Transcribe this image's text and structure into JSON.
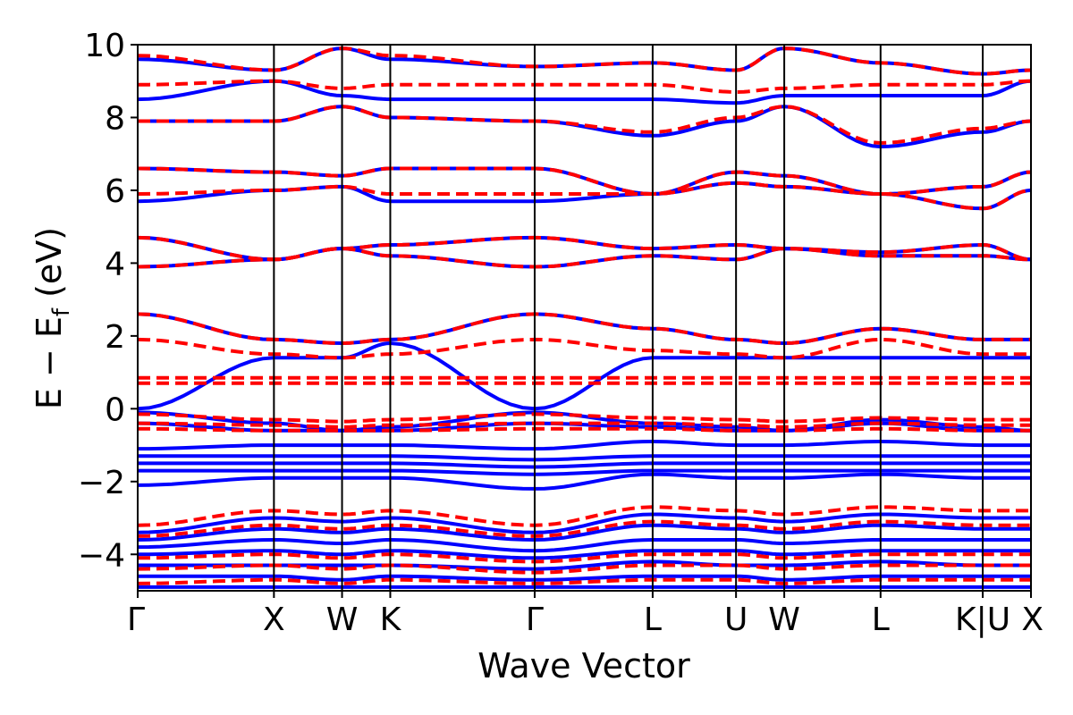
{
  "chart_data": {
    "type": "line",
    "title": "",
    "xlabel": "Wave Vector",
    "ylabel": "E − E",
    "ylabel_subscript": "f",
    "ylabel_unit": " (eV)",
    "ylim": [
      -5,
      10
    ],
    "yticks": [
      {
        "value": 10,
        "label": "10"
      },
      {
        "value": 8,
        "label": "8"
      },
      {
        "value": 6,
        "label": "6"
      },
      {
        "value": 4,
        "label": "4"
      },
      {
        "value": 2,
        "label": "2"
      },
      {
        "value": 0,
        "label": "0"
      },
      {
        "value": -2,
        "label": "−2"
      },
      {
        "value": -4,
        "label": "−4"
      }
    ],
    "k_points": [
      {
        "label": "Γ",
        "x": 0.0
      },
      {
        "label": "X",
        "x": 1.0
      },
      {
        "label": "W",
        "x": 1.5
      },
      {
        "label": "K",
        "x": 1.854
      },
      {
        "label": "Γ",
        "x": 2.914
      },
      {
        "label": "L",
        "x": 3.78
      },
      {
        "label": "U",
        "x": 4.392
      },
      {
        "label": "W",
        "x": 4.746
      },
      {
        "label": "L",
        "x": 5.453
      },
      {
        "label": "K|U",
        "x": 6.203
      },
      {
        "label": "X",
        "x": 6.557
      }
    ],
    "xlim": [
      0,
      6.557
    ],
    "grid": false,
    "series_styles": [
      {
        "color": "#0000ff",
        "dash": "solid"
      },
      {
        "color": "#ff0000",
        "dash": "dashed"
      }
    ],
    "series": [
      {
        "style": 0,
        "bands": [
          [
            0.0,
            1.4,
            1.4,
            1.8,
            0.0,
            1.4,
            1.4,
            1.4,
            1.4,
            1.4,
            1.4
          ],
          [
            2.6,
            1.9,
            1.8,
            1.9,
            2.6,
            2.2,
            1.9,
            1.8,
            2.2,
            1.9,
            1.9
          ],
          [
            -0.1,
            -0.4,
            -0.6,
            -0.5,
            -0.1,
            -0.4,
            -0.5,
            -0.6,
            -0.3,
            -0.5,
            -0.6
          ],
          [
            -0.4,
            -0.6,
            -0.6,
            -0.6,
            -0.4,
            -0.5,
            -0.6,
            -0.6,
            -0.4,
            -0.6,
            -0.6
          ],
          [
            -1.1,
            -1.0,
            -1.0,
            -1.0,
            -1.1,
            -0.9,
            -1.0,
            -1.0,
            -0.9,
            -1.0,
            -1.0
          ],
          [
            -1.3,
            -1.3,
            -1.3,
            -1.3,
            -1.4,
            -1.3,
            -1.3,
            -1.3,
            -1.3,
            -1.3,
            -1.3
          ],
          [
            -1.5,
            -1.5,
            -1.5,
            -1.5,
            -1.6,
            -1.5,
            -1.5,
            -1.5,
            -1.5,
            -1.5,
            -1.5
          ],
          [
            -1.7,
            -1.7,
            -1.7,
            -1.7,
            -1.8,
            -1.7,
            -1.7,
            -1.7,
            -1.7,
            -1.7,
            -1.7
          ],
          [
            -2.1,
            -1.9,
            -1.9,
            -1.9,
            -2.2,
            -1.8,
            -1.9,
            -1.9,
            -1.8,
            -1.9,
            -1.9
          ],
          [
            -3.4,
            -3.0,
            -3.1,
            -3.0,
            -3.4,
            -2.9,
            -3.0,
            -3.1,
            -2.9,
            -3.0,
            -3.0
          ],
          [
            -3.6,
            -3.3,
            -3.4,
            -3.3,
            -3.6,
            -3.2,
            -3.3,
            -3.4,
            -3.2,
            -3.3,
            -3.3
          ],
          [
            -3.8,
            -3.6,
            -3.7,
            -3.6,
            -3.9,
            -3.6,
            -3.6,
            -3.7,
            -3.6,
            -3.6,
            -3.6
          ],
          [
            -4.0,
            -3.9,
            -4.0,
            -3.9,
            -4.1,
            -3.9,
            -3.9,
            -4.0,
            -3.9,
            -3.9,
            -3.9
          ],
          [
            -4.3,
            -4.3,
            -4.3,
            -4.3,
            -4.4,
            -4.2,
            -4.3,
            -4.3,
            -4.2,
            -4.3,
            -4.3
          ],
          [
            -4.6,
            -4.6,
            -4.7,
            -4.6,
            -4.7,
            -4.6,
            -4.6,
            -4.7,
            -4.6,
            -4.6,
            -4.6
          ],
          [
            -4.9,
            -4.9,
            -4.9,
            -4.9,
            -4.9,
            -4.9,
            -4.9,
            -4.9,
            -4.9,
            -4.9,
            -4.9
          ],
          [
            3.9,
            4.1,
            4.4,
            4.2,
            3.9,
            4.2,
            4.1,
            4.4,
            4.2,
            4.2,
            4.1
          ],
          [
            4.7,
            4.1,
            4.4,
            4.5,
            4.7,
            4.4,
            4.5,
            4.4,
            4.3,
            4.5,
            4.1
          ],
          [
            5.7,
            6.0,
            6.1,
            5.7,
            5.7,
            5.9,
            6.2,
            6.1,
            5.9,
            5.5,
            6.0
          ],
          [
            6.6,
            6.5,
            6.4,
            6.6,
            6.6,
            5.9,
            6.5,
            6.4,
            5.9,
            6.1,
            6.5
          ],
          [
            7.9,
            7.9,
            8.3,
            8.0,
            7.9,
            7.5,
            7.9,
            8.3,
            7.2,
            7.6,
            7.9
          ],
          [
            8.5,
            9.0,
            8.6,
            8.5,
            8.5,
            8.5,
            8.4,
            8.6,
            8.6,
            8.6,
            9.0
          ],
          [
            9.6,
            9.3,
            9.9,
            9.6,
            9.4,
            9.5,
            9.3,
            9.9,
            9.5,
            9.2,
            9.3
          ]
        ]
      },
      {
        "style": 1,
        "bands": [
          [
            0.7,
            0.7,
            0.7,
            0.7,
            0.7,
            0.7,
            0.7,
            0.7,
            0.7,
            0.7,
            0.7
          ],
          [
            0.85,
            0.85,
            0.85,
            0.85,
            0.85,
            0.85,
            0.85,
            0.85,
            0.85,
            0.85,
            0.85
          ],
          [
            1.9,
            1.5,
            1.4,
            1.5,
            1.9,
            1.6,
            1.5,
            1.4,
            1.9,
            1.5,
            1.5
          ],
          [
            2.6,
            1.9,
            1.8,
            1.9,
            2.6,
            2.2,
            1.9,
            1.8,
            2.2,
            1.9,
            1.9
          ],
          [
            -0.15,
            -0.3,
            -0.35,
            -0.3,
            -0.15,
            -0.25,
            -0.3,
            -0.35,
            -0.25,
            -0.3,
            -0.3
          ],
          [
            -0.4,
            -0.45,
            -0.5,
            -0.45,
            -0.4,
            -0.4,
            -0.45,
            -0.5,
            -0.4,
            -0.45,
            -0.45
          ],
          [
            -0.55,
            -0.6,
            -0.6,
            -0.6,
            -0.55,
            -0.55,
            -0.6,
            -0.6,
            -0.55,
            -0.6,
            -0.6
          ],
          [
            -3.2,
            -2.8,
            -2.9,
            -2.8,
            -3.2,
            -2.7,
            -2.8,
            -2.9,
            -2.7,
            -2.8,
            -2.8
          ],
          [
            -3.5,
            -3.2,
            -3.3,
            -3.2,
            -3.5,
            -3.1,
            -3.2,
            -3.3,
            -3.1,
            -3.2,
            -3.2
          ],
          [
            -4.1,
            -4.0,
            -4.1,
            -4.0,
            -4.2,
            -4.0,
            -4.0,
            -4.1,
            -4.0,
            -4.0,
            -4.0
          ],
          [
            -4.4,
            -4.3,
            -4.4,
            -4.3,
            -4.5,
            -4.3,
            -4.3,
            -4.4,
            -4.3,
            -4.3,
            -4.3
          ],
          [
            -4.8,
            -4.7,
            -4.8,
            -4.7,
            -4.8,
            -4.7,
            -4.7,
            -4.8,
            -4.7,
            -4.7,
            -4.7
          ],
          [
            3.9,
            4.1,
            4.4,
            4.2,
            3.9,
            4.2,
            4.1,
            4.4,
            4.2,
            4.2,
            4.1
          ],
          [
            4.7,
            4.1,
            4.4,
            4.5,
            4.7,
            4.4,
            4.5,
            4.4,
            4.3,
            4.5,
            4.1
          ],
          [
            5.9,
            6.0,
            6.1,
            5.9,
            5.9,
            5.9,
            6.2,
            6.1,
            5.9,
            5.5,
            6.0
          ],
          [
            6.6,
            6.5,
            6.4,
            6.6,
            6.6,
            5.9,
            6.5,
            6.4,
            5.9,
            6.1,
            6.5
          ],
          [
            7.9,
            7.9,
            8.3,
            8.0,
            7.9,
            7.6,
            8.0,
            8.3,
            7.3,
            7.7,
            7.9
          ],
          [
            8.9,
            9.0,
            8.8,
            8.9,
            8.9,
            8.9,
            8.7,
            8.8,
            8.9,
            8.9,
            9.0
          ],
          [
            9.7,
            9.3,
            9.9,
            9.7,
            9.4,
            9.5,
            9.3,
            9.9,
            9.5,
            9.2,
            9.3
          ]
        ]
      }
    ]
  }
}
